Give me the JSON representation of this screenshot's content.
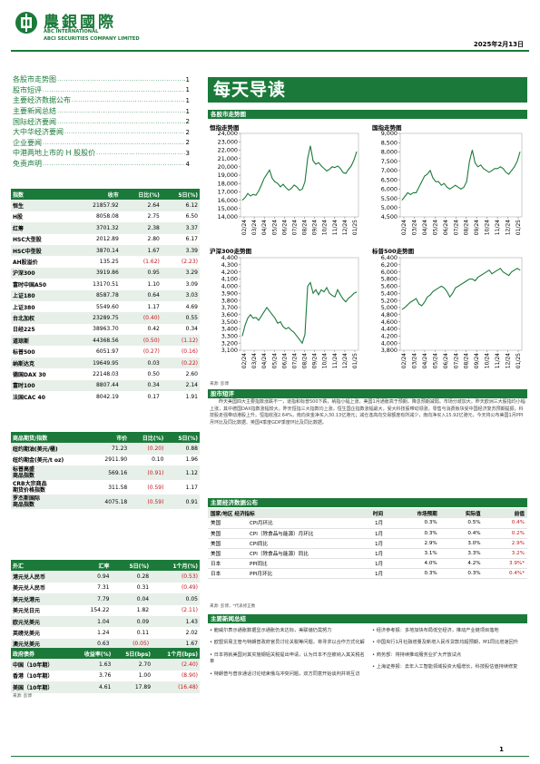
{
  "header": {
    "brand_cn": "農銀國際",
    "brand_en1": "ABC INTERNATIONAL",
    "brand_en2": "ABCI SECURITIES COMPANY LIMITED",
    "date": "2025年2月13日",
    "accent_color": "#1b7a3a"
  },
  "toc": [
    {
      "label": "各股市走势图",
      "page": "1"
    },
    {
      "label": "股市短评",
      "page": "1"
    },
    {
      "label": "主要经济数据公布",
      "page": "1"
    },
    {
      "label": "主要新闻总结",
      "page": "1"
    },
    {
      "label": "国际经济要闻",
      "page": "2"
    },
    {
      "label": "大中华经济要闻",
      "page": "2"
    },
    {
      "label": "企业要闻",
      "page": "2"
    },
    {
      "label": "中港两地上市的 H 股股价",
      "page": "3"
    },
    {
      "label": "免责声明",
      "page": "4"
    }
  ],
  "index_table": {
    "headers": [
      "指数",
      "收市",
      "日比(%)",
      "5日(%)"
    ],
    "rows": [
      [
        "恒生",
        "21857.92",
        "2.64",
        "6.12"
      ],
      [
        "H股",
        "8058.08",
        "2.75",
        "6.50"
      ],
      [
        "红筹",
        "3701.32",
        "2.38",
        "3.37"
      ],
      [
        "HSC大型股",
        "2012.89",
        "2.80",
        "6.17"
      ],
      [
        "HSC中型股",
        "3870.14",
        "1.67",
        "3.39"
      ],
      [
        "AH股溢价",
        "135.25",
        "(1.62)",
        "(2.23)"
      ],
      [
        "沪深300",
        "3919.86",
        "0.95",
        "3.29"
      ],
      [
        "富时中国A50",
        "13170.51",
        "1.10",
        "3.09"
      ],
      [
        "上证180",
        "8587.78",
        "0.64",
        "3.03"
      ],
      [
        "上证380",
        "5549.60",
        "1.17",
        "4.69"
      ],
      [
        "台北加权",
        "23289.75",
        "(0.40)",
        "0.55"
      ],
      [
        "日经225",
        "38963.70",
        "0.42",
        "0.34"
      ],
      [
        "道琼斯",
        "44368.56",
        "(0.50)",
        "(1.12)"
      ],
      [
        "标普500",
        "6051.97",
        "(0.27)",
        "(0.16)"
      ],
      [
        "纳斯达克",
        "19649.95",
        "0.03",
        "(0.22)"
      ],
      [
        "德国DAX 30",
        "22148.03",
        "0.50",
        "2.60"
      ],
      [
        "富时100",
        "8807.44",
        "0.34",
        "2.14"
      ],
      [
        "法国CAC 40",
        "8042.19",
        "0.17",
        "1.91"
      ]
    ]
  },
  "commodity_table": {
    "headers": [
      "商品期货/指数",
      "市价",
      "日比(%)",
      "5日(%)"
    ],
    "rows": [
      [
        "纽约期油(美元/桶)",
        "71.23",
        "(0.20)",
        "0.88"
      ],
      [
        "纽约期金(美元/t oz)",
        "2911.90",
        "0.10",
        "1.96"
      ],
      [
        "标普高盛\n商品指数",
        "569.16",
        "(0.91)",
        "1.12"
      ],
      [
        "CRB大宗商品\n期货价格指数",
        "311.58",
        "(0.59)",
        "1.17"
      ],
      [
        "罗杰斯国际\n商品指数",
        "4075.18",
        "(0.59)",
        "0.91"
      ]
    ]
  },
  "fx_table": {
    "headers": [
      "外汇",
      "汇率",
      "5日(%)",
      "1个月(%)"
    ],
    "rows": [
      [
        "港元兑人民币",
        "0.94",
        "0.28",
        "(0.53)"
      ],
      [
        "美元兑人民币",
        "7.31",
        "0.31",
        "(0.49)"
      ],
      [
        "美元兑港元",
        "7.79",
        "0.04",
        "0.05"
      ],
      [
        "美元兑日元",
        "154.22",
        "1.82",
        "(2.11)"
      ],
      [
        "欧元兑美元",
        "1.04",
        "0.09",
        "1.43"
      ],
      [
        "英磅兑美元",
        "1.24",
        "0.11",
        "2.02"
      ],
      [
        "澳元兑美元",
        "0.63",
        "(0.05)",
        "1.67"
      ]
    ]
  },
  "bond_table": {
    "headers": [
      "政府债券",
      "收益率(%)",
      "5日(bps)",
      "1个月(bps)"
    ],
    "rows": [
      [
        "中国（10年期）",
        "1.63",
        "2.70",
        "(2.40)"
      ],
      [
        "香港（10年期）",
        "3.76",
        "1.00",
        "(8.90)"
      ],
      [
        "美国（10年期）",
        "4.61",
        "17.89",
        "(16.48)"
      ]
    ]
  },
  "sources": {
    "left": "来源: 彭博",
    "chart": "来源: 彭博",
    "econ": "来源: 彭博，*代表修正数"
  },
  "main": {
    "title": "每天导读",
    "sec_charts": "各股市走势图",
    "sec_comment": "股市短评",
    "sec_econ": "主要经济数据公布",
    "sec_news": "主要新闻总结",
    "commentary": "昨天美国四大主要指数涨跌不一，道指和标普500下跌，纳指小幅上涨，美国1月通胀高于预期，降息预期减弱。市场分歧加大。昨天欧洲三大股指均小幅上涨，其中德国DAX指数涨幅较大。昨天恒指三大指数均上涨。恒生国企指数涨幅最大，受大科技股带动领涨。零售与消费板块受中国经济复苏预期提振，科技股走强带动港股上升。恒指收涨2.64%，南向资金净买入30.13亿港元；减仓逢高向交易额度有所减少，南向净买入15.92亿港元，今天将公布美国1月PPI月环比及同比数据、英国4季度GDP季度环比及同比数据。"
  },
  "charts": [
    {
      "title": "恒指走势图",
      "chart_data": {
        "type": "line",
        "x_labels": [
          "02/24",
          "03/24",
          "04/24",
          "05/24",
          "06/24",
          "07/24",
          "08/24",
          "09/24",
          "10/24",
          "11/24",
          "12/24",
          "01/25"
        ],
        "ylim": [
          14000,
          24000
        ],
        "yticks": [
          "24,000",
          "23,000",
          "22,000",
          "21,000",
          "20,000",
          "19,000",
          "18,000",
          "17,000",
          "16,000",
          "15,000",
          "14,000"
        ],
        "values": [
          16000,
          16300,
          16800,
          16500,
          16700,
          16600,
          17100,
          17800,
          18600,
          19100,
          19600,
          18600,
          18200,
          18000,
          17600,
          17900,
          17500,
          17200,
          17400,
          17800,
          17600,
          17200,
          17300,
          18200,
          21000,
          22500,
          20700,
          20300,
          20500,
          20100,
          19800,
          19500,
          19700,
          20000,
          19900,
          20100,
          19800,
          19300,
          19200,
          19700,
          20100,
          20800,
          21800
        ]
      }
    },
    {
      "title": "国指走势图",
      "chart_data": {
        "type": "line",
        "x_labels": [
          "02/24",
          "03/24",
          "04/24",
          "05/24",
          "06/24",
          "07/24",
          "08/24",
          "09/24",
          "10/24",
          "11/24",
          "12/24",
          "01/25"
        ],
        "ylim": [
          4500,
          9000
        ],
        "yticks": [
          "9,000",
          "8,500",
          "8,000",
          "7,500",
          "7,000",
          "6,500",
          "6,000",
          "5,500",
          "5,000",
          "4,500"
        ],
        "values": [
          5400,
          5600,
          5800,
          5700,
          5800,
          5800,
          6100,
          6400,
          6700,
          6800,
          7000,
          6600,
          6400,
          6400,
          6200,
          6300,
          6100,
          6000,
          6100,
          6200,
          6100,
          6000,
          6100,
          6400,
          7500,
          8100,
          7400,
          7200,
          7300,
          7100,
          7000,
          6900,
          7000,
          7100,
          7100,
          7200,
          7100,
          6900,
          6800,
          7000,
          7200,
          7500,
          8000
        ]
      }
    },
    {
      "title": "沪深300走势图",
      "chart_data": {
        "type": "line",
        "x_labels": [
          "02/24",
          "03/24",
          "04/24",
          "05/24",
          "06/24",
          "07/24",
          "08/24",
          "09/24",
          "10/24",
          "11/24",
          "12/24",
          "01/25"
        ],
        "ylim": [
          3100,
          4400
        ],
        "yticks": [
          "4,400",
          "4,300",
          "4,200",
          "4,100",
          "4,000",
          "3,900",
          "3,800",
          "3,700",
          "3,600",
          "3,500",
          "3,400",
          "3,300",
          "3,200",
          "3,100"
        ],
        "values": [
          3300,
          3450,
          3550,
          3600,
          3550,
          3560,
          3520,
          3580,
          3640,
          3700,
          3650,
          3600,
          3550,
          3480,
          3500,
          3430,
          3400,
          3420,
          3380,
          3350,
          3300,
          3250,
          3200,
          3320,
          4000,
          4050,
          3900,
          3950,
          3880,
          3950,
          3920,
          3980,
          3900,
          3870,
          3850,
          3950,
          3880,
          3820,
          3780,
          3830,
          3860,
          3900,
          3920
        ]
      }
    },
    {
      "title": "标普500走势图",
      "chart_data": {
        "type": "line",
        "x_labels": [
          "02/24",
          "03/24",
          "04/24",
          "05/24",
          "06/24",
          "07/24",
          "08/24",
          "09/24",
          "10/24",
          "11/24",
          "12/24",
          "01/25"
        ],
        "ylim": [
          3800,
          6400
        ],
        "yticks": [
          "6,400",
          "6,200",
          "6,000",
          "5,800",
          "5,600",
          "5,400",
          "5,200",
          "5,000",
          "4,800",
          "4,600",
          "4,400",
          "4,200",
          "4,000",
          "3,800"
        ],
        "values": [
          4950,
          5000,
          5080,
          5150,
          5200,
          5250,
          5100,
          5050,
          5150,
          5300,
          5350,
          5450,
          5500,
          5550,
          5600,
          5550,
          5450,
          5300,
          5400,
          5550,
          5600,
          5650,
          5700,
          5750,
          5800,
          5800,
          5750,
          5850,
          5900,
          5950,
          6000,
          6050,
          5950,
          6000,
          6050,
          6100,
          6000,
          5950,
          5900,
          6000,
          6050,
          6100,
          6050
        ]
      }
    }
  ],
  "econ_table": {
    "headers": [
      "国家/地区 经济指标",
      "时间",
      "市场预期",
      "实际值",
      "前值"
    ],
    "rows": [
      [
        "美国",
        "CPI月环比",
        "1月",
        "0.3%",
        "0.5%",
        "0.4%"
      ],
      [
        "美国",
        "CPI（除食品与能源）月环比",
        "1月",
        "0.3%",
        "0.4%",
        "0.2%"
      ],
      [
        "美国",
        "CPI同比",
        "1月",
        "2.9%",
        "3.0%",
        "2.9%"
      ],
      [
        "美国",
        "CPI（除食品与能源）同比",
        "1月",
        "3.1%",
        "3.3%",
        "3.2%"
      ],
      [
        "日本",
        "PPI同比",
        "1月",
        "4.0%",
        "4.2%",
        "3.9%*"
      ],
      [
        "日本",
        "PPI月环比",
        "1月",
        "0.3%",
        "0.3%",
        "0.4%*"
      ]
    ]
  },
  "news": {
    "left": [
      "鲍威尔表示通胀数据显示通胀仍未达标，美联储仍需努力",
      "欧盟贸易主管与特朗普政府官员讨论关税等问题，将寻求以合作方式化解",
      "日本将就美国对其实施钢铝关税提出申请，认为日本不应被纳入其关税名单",
      "特朗普与普京通话讨论结束俄乌冲突问题，双方同意开始谈判并将互访"
    ],
    "right": [
      "经济参考报：多地加快布局低空经济，推动产业链项目落地",
      "中国央行1月社融增量及新增人民币贷款均超预期，M1同比增速回升",
      "商务部：将持续推动服务业扩大开放试点",
      "上海证券报：去年人工智能领域投资大幅增长，科技股估值持续修复"
    ]
  },
  "footer": {
    "page": "1"
  }
}
